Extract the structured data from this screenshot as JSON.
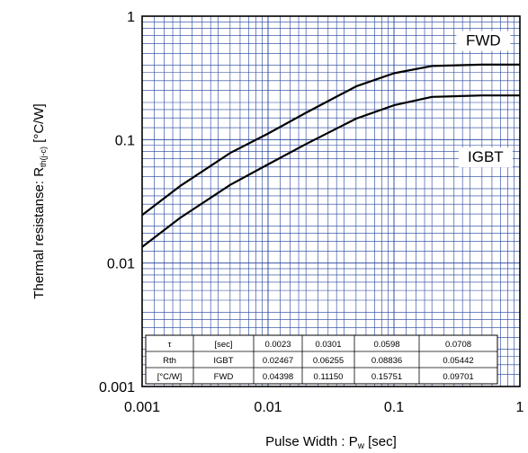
{
  "chart_data": {
    "type": "line",
    "xlabel": "Pulse Width : P",
    "xlabel_sub": "w",
    "xlabel_unit": " [sec]",
    "ylabel": "Thermal resistanse: R",
    "ylabel_sub": "th(j-c)",
    "ylabel_unit": " [°C/W]",
    "xscale": "log",
    "yscale": "log",
    "xlim": [
      0.001,
      1
    ],
    "ylim": [
      0.001,
      1
    ],
    "x_ticks": [
      {
        "value": 0.001,
        "label": "0.001"
      },
      {
        "value": 0.01,
        "label": "0.01"
      },
      {
        "value": 0.1,
        "label": "0.1"
      },
      {
        "value": 1,
        "label": "1"
      }
    ],
    "y_ticks": [
      {
        "value": 0.001,
        "label": "0.001"
      },
      {
        "value": 0.01,
        "label": "0.01"
      },
      {
        "value": 0.1,
        "label": "0.1"
      },
      {
        "value": 1,
        "label": "1"
      }
    ],
    "grid": true,
    "colors": {
      "grid": "#1f3f99",
      "curve": "#000000",
      "frame": "#000000"
    },
    "series": [
      {
        "name": "FWD",
        "label_at": [
          0.48,
          0.58
        ],
        "points": [
          [
            0.001,
            0.0245
          ],
          [
            0.002,
            0.042
          ],
          [
            0.005,
            0.078
          ],
          [
            0.01,
            0.112
          ],
          [
            0.02,
            0.165
          ],
          [
            0.05,
            0.27
          ],
          [
            0.1,
            0.345
          ],
          [
            0.2,
            0.395
          ],
          [
            0.5,
            0.405
          ],
          [
            1,
            0.405
          ]
        ]
      },
      {
        "name": "IGBT",
        "label_at": [
          0.5,
          0.066
        ],
        "points": [
          [
            0.001,
            0.0135
          ],
          [
            0.002,
            0.0232
          ],
          [
            0.005,
            0.043
          ],
          [
            0.01,
            0.063
          ],
          [
            0.02,
            0.092
          ],
          [
            0.05,
            0.148
          ],
          [
            0.1,
            0.19
          ],
          [
            0.2,
            0.222
          ],
          [
            0.5,
            0.228
          ],
          [
            1,
            0.228
          ]
        ]
      }
    ],
    "table": {
      "header": [
        "τ",
        "[sec]",
        "0.0023",
        "0.0301",
        "0.0598",
        "0.0708"
      ],
      "rows": [
        [
          "Rth",
          "IGBT",
          "0.02467",
          "0.06255",
          "0.08836",
          "0.05442"
        ],
        [
          "[°C/W]",
          "FWD",
          "0.04398",
          "0.11150",
          "0.15751",
          "0.09701"
        ]
      ]
    }
  }
}
